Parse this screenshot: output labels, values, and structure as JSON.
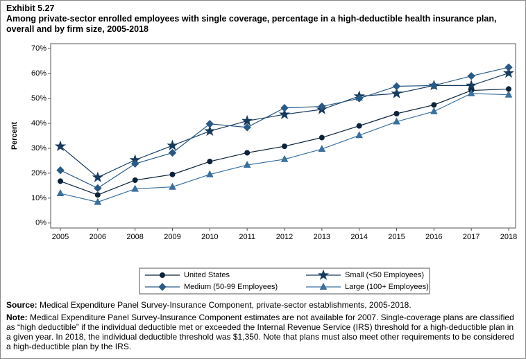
{
  "chart_data": {
    "type": "line",
    "exhibit": "Exhibit 5.27",
    "title": "Among private-sector enrolled employees with single coverage, percentage in a high-deductible health insurance plan, overall and by firm size, 2005-2018",
    "y_label": "Percent",
    "categories": [
      "2005",
      "2006",
      "2008",
      "2009",
      "2010",
      "2011",
      "2012",
      "2013",
      "2014",
      "2015",
      "2016",
      "2017",
      "2018"
    ],
    "ylim": [
      -2,
      72
    ],
    "yticks": [
      {
        "value": 0,
        "label": "0%"
      },
      {
        "value": 10,
        "label": "10%"
      },
      {
        "value": 20,
        "label": "20%"
      },
      {
        "value": 30,
        "label": "30%"
      },
      {
        "value": 40,
        "label": "40%"
      },
      {
        "value": 50,
        "label": "50%"
      },
      {
        "value": 60,
        "label": "60%"
      },
      {
        "value": 70,
        "label": "70%"
      }
    ],
    "series": [
      {
        "name": "United States",
        "color": "#0b2239",
        "marker": "circle",
        "values": [
          16.8,
          11.3,
          17.2,
          19.5,
          24.7,
          28.2,
          30.8,
          34.3,
          39.0,
          43.9,
          47.4,
          53.2,
          53.8
        ]
      },
      {
        "name": "Small (<50 Employees)",
        "color": "#163a5e",
        "marker": "star",
        "values": [
          30.8,
          18.3,
          25.3,
          31.1,
          36.9,
          41.0,
          43.6,
          45.6,
          50.9,
          52.0,
          55.2,
          55.2,
          60.2
        ]
      },
      {
        "name": "Medium (50-99 Employees)",
        "color": "#285a86",
        "marker": "diamond",
        "values": [
          21.2,
          14.0,
          23.8,
          28.2,
          39.8,
          38.4,
          46.2,
          46.8,
          50.0,
          54.9,
          55.2,
          59.0,
          62.5
        ]
      },
      {
        "name": "Large (100+ Employees)",
        "color": "#3a6f9e",
        "marker": "triangle",
        "values": [
          11.9,
          8.4,
          13.7,
          14.5,
          19.5,
          23.3,
          25.6,
          29.7,
          35.2,
          40.7,
          44.8,
          52.0,
          51.5
        ]
      }
    ],
    "source_label": "Source:",
    "source": "Medical Expenditure Panel Survey-Insurance Component, private-sector establishments, 2005-2018.",
    "note_label": "Note:",
    "note": "Medical Expenditure Panel Survey-Insurance Component estimates are not available for 2007. Single-coverage plans are classified as “high deductible” if the individual deductible met or exceeded the Internal Revenue Service (IRS) threshold for a high-deductible plan in a given year. In 2018, the individual deductible threshold was $1,350. Note that plans must also meet other requirements to be considered a high-deductible plan by the IRS."
  }
}
